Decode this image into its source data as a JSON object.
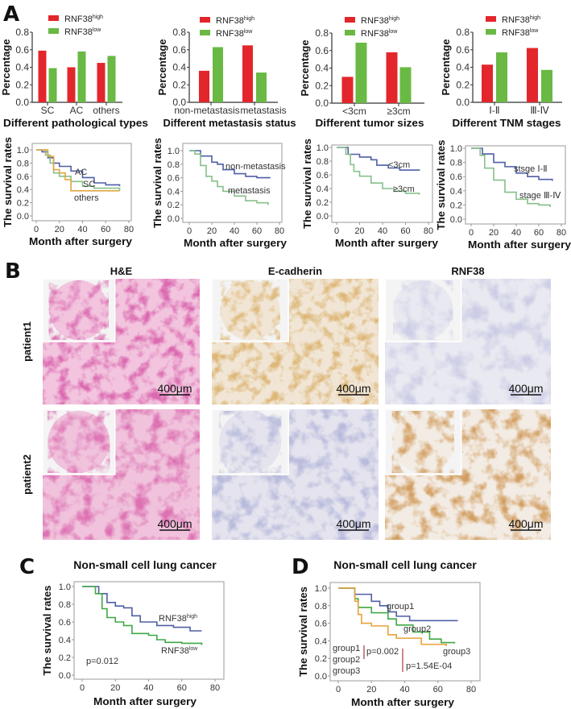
{
  "panel_labels": [
    "A",
    "B",
    "C",
    "D"
  ],
  "histology": {
    "columns": [
      "H&E",
      "E-cadherin",
      "RNF38"
    ],
    "rows": [
      "patient1",
      "patient2"
    ],
    "scale_bar": "400μm"
  },
  "chart_data": [
    {
      "type": "bar",
      "xlabel": "Different pathological types",
      "ylabel": "Percentage",
      "ylim": [
        0,
        0.8
      ],
      "yticks": [
        "0.0",
        "0.2",
        "0.4",
        "0.6",
        "0.8"
      ],
      "categories": [
        "SC",
        "AC",
        "others"
      ],
      "series": [
        {
          "name": "RNF38",
          "name_sup": "high",
          "color": "#e3262b",
          "values": [
            0.59,
            0.4,
            0.45
          ]
        },
        {
          "name": "RNF38",
          "name_sup": "low",
          "color": "#69b944",
          "values": [
            0.39,
            0.58,
            0.53
          ]
        }
      ]
    },
    {
      "type": "bar",
      "xlabel": "Different metastasis status",
      "ylabel": "Percentage",
      "ylim": [
        0,
        0.8
      ],
      "yticks": [
        "0.0",
        "0.2",
        "0.4",
        "0.6",
        "0.8"
      ],
      "categories": [
        "non-metastasis",
        "metastasis"
      ],
      "series": [
        {
          "name": "RNF38",
          "name_sup": "high",
          "color": "#e3262b",
          "values": [
            0.36,
            0.65
          ]
        },
        {
          "name": "RNF38",
          "name_sup": "low",
          "color": "#69b944",
          "values": [
            0.63,
            0.34
          ]
        }
      ]
    },
    {
      "type": "bar",
      "xlabel": "Different tumor sizes",
      "ylabel": "Percentage",
      "ylim": [
        0,
        0.8
      ],
      "yticks": [
        "0.0",
        "0.2",
        "0.4",
        "0.6",
        "0.8"
      ],
      "categories": [
        "<3cm",
        "≥3cm"
      ],
      "series": [
        {
          "name": "RNF38",
          "name_sup": "high",
          "color": "#e3262b",
          "values": [
            0.3,
            0.58
          ]
        },
        {
          "name": "RNF38",
          "name_sup": "low",
          "color": "#69b944",
          "values": [
            0.69,
            0.41
          ]
        }
      ]
    },
    {
      "type": "bar",
      "xlabel": "Different TNM stages",
      "ylabel": "Percentage",
      "ylim": [
        0,
        0.8
      ],
      "yticks": [
        "0.0",
        "0.2",
        "0.4",
        "0.6",
        "0.8"
      ],
      "categories": [
        "Ⅰ-Ⅱ",
        "Ⅲ-Ⅳ"
      ],
      "series": [
        {
          "name": "RNF38",
          "name_sup": "high",
          "color": "#e3262b",
          "values": [
            0.43,
            0.62
          ]
        },
        {
          "name": "RNF38",
          "name_sup": "low",
          "color": "#69b944",
          "values": [
            0.57,
            0.37
          ]
        }
      ]
    },
    {
      "type": "line",
      "step": true,
      "xlabel": "Month after surgery",
      "ylabel": "The survival rates",
      "xlim": [
        0,
        80
      ],
      "ylim": [
        0,
        1
      ],
      "xticks": [
        "0",
        "20",
        "40",
        "60",
        "80"
      ],
      "yticks": [
        "0.0",
        "0.2",
        "0.4",
        "0.6",
        "0.8",
        "1.0"
      ],
      "series": [
        {
          "name": "AC",
          "color": "#4f5fa6",
          "points": [
            [
              0,
              1
            ],
            [
              5,
              0.97
            ],
            [
              10,
              0.88
            ],
            [
              15,
              0.8
            ],
            [
              20,
              0.75
            ],
            [
              30,
              0.68
            ],
            [
              40,
              0.58
            ],
            [
              50,
              0.5
            ],
            [
              60,
              0.47
            ],
            [
              72,
              0.45
            ]
          ]
        },
        {
          "name": "SC",
          "color": "#86c08a",
          "points": [
            [
              0,
              1
            ],
            [
              8,
              0.92
            ],
            [
              12,
              0.8
            ],
            [
              15,
              0.65
            ],
            [
              20,
              0.6
            ],
            [
              30,
              0.52
            ],
            [
              40,
              0.45
            ],
            [
              50,
              0.42
            ],
            [
              72,
              0.38
            ]
          ]
        },
        {
          "name": "others",
          "color": "#e0a640",
          "points": [
            [
              0,
              1
            ],
            [
              8,
              1
            ],
            [
              10,
              0.9
            ],
            [
              15,
              0.7
            ],
            [
              20,
              0.65
            ],
            [
              25,
              0.55
            ],
            [
              30,
              0.38
            ],
            [
              72,
              0.38
            ]
          ]
        }
      ]
    },
    {
      "type": "line",
      "step": true,
      "xlabel": "Month after surgery",
      "ylabel": "The survival rates",
      "xlim": [
        0,
        80
      ],
      "ylim": [
        0,
        1
      ],
      "xticks": [
        "0",
        "20",
        "40",
        "60",
        "80"
      ],
      "yticks": [
        "0.0",
        "0.2",
        "0.4",
        "0.6",
        "0.8",
        "1.0"
      ],
      "series": [
        {
          "name": "non-metastasis",
          "color": "#4f5fa6",
          "points": [
            [
              0,
              1
            ],
            [
              10,
              0.92
            ],
            [
              20,
              0.83
            ],
            [
              25,
              0.8
            ],
            [
              30,
              0.72
            ],
            [
              40,
              0.66
            ],
            [
              50,
              0.62
            ],
            [
              60,
              0.6
            ],
            [
              72,
              0.6
            ]
          ]
        },
        {
          "name": "metastasis",
          "color": "#86c08a",
          "points": [
            [
              0,
              1
            ],
            [
              5,
              0.95
            ],
            [
              10,
              0.78
            ],
            [
              15,
              0.62
            ],
            [
              20,
              0.55
            ],
            [
              25,
              0.47
            ],
            [
              30,
              0.4
            ],
            [
              40,
              0.33
            ],
            [
              50,
              0.26
            ],
            [
              60,
              0.23
            ],
            [
              70,
              0.2
            ]
          ]
        }
      ]
    },
    {
      "type": "line",
      "step": true,
      "xlabel": "Month after surgery",
      "ylabel": "The survival rates",
      "xlim": [
        0,
        80
      ],
      "ylim": [
        0,
        1
      ],
      "xticks": [
        "0",
        "20",
        "40",
        "60",
        "80"
      ],
      "yticks": [
        "0.0",
        "0.2",
        "0.4",
        "0.6",
        "0.8",
        "1.0"
      ],
      "series": [
        {
          "name": "<3cm",
          "color": "#4f5fa6",
          "points": [
            [
              0,
              1
            ],
            [
              10,
              0.9
            ],
            [
              20,
              0.86
            ],
            [
              30,
              0.82
            ],
            [
              35,
              0.74
            ],
            [
              45,
              0.7
            ],
            [
              55,
              0.67
            ],
            [
              72,
              0.66
            ]
          ]
        },
        {
          "name": "≥3cm",
          "color": "#86c08a",
          "points": [
            [
              0,
              1
            ],
            [
              8,
              0.9
            ],
            [
              12,
              0.75
            ],
            [
              15,
              0.65
            ],
            [
              20,
              0.58
            ],
            [
              30,
              0.48
            ],
            [
              40,
              0.4
            ],
            [
              50,
              0.36
            ],
            [
              60,
              0.33
            ],
            [
              72,
              0.31
            ]
          ]
        }
      ]
    },
    {
      "type": "line",
      "step": true,
      "xlabel": "Month after surgery",
      "ylabel": "The survival rates",
      "xlim": [
        0,
        80
      ],
      "ylim": [
        0,
        1
      ],
      "xticks": [
        "0",
        "20",
        "40",
        "60",
        "80"
      ],
      "yticks": [
        "0.0",
        "0.2",
        "0.4",
        "0.6",
        "0.8",
        "1.0"
      ],
      "series": [
        {
          "name": "stsge Ⅰ-Ⅱ",
          "color": "#4f5fa6",
          "points": [
            [
              0,
              1
            ],
            [
              10,
              0.92
            ],
            [
              20,
              0.8
            ],
            [
              30,
              0.74
            ],
            [
              40,
              0.65
            ],
            [
              50,
              0.6
            ],
            [
              60,
              0.56
            ],
            [
              72,
              0.54
            ]
          ]
        },
        {
          "name": "stage Ⅲ-Ⅳ",
          "color": "#86c08a",
          "points": [
            [
              0,
              1
            ],
            [
              8,
              0.9
            ],
            [
              12,
              0.72
            ],
            [
              20,
              0.55
            ],
            [
              30,
              0.38
            ],
            [
              40,
              0.28
            ],
            [
              50,
              0.22
            ],
            [
              60,
              0.2
            ],
            [
              70,
              0.17
            ]
          ]
        }
      ]
    },
    {
      "type": "line",
      "step": true,
      "title": "Non-small cell lung cancer",
      "xlabel": "Month after surgery",
      "ylabel": "The survival rates",
      "xlim": [
        0,
        80
      ],
      "ylim": [
        0,
        1
      ],
      "xticks": [
        "0",
        "20",
        "40",
        "60",
        "80"
      ],
      "yticks": [
        "0.0",
        "0.2",
        "0.4",
        "0.6",
        "0.8",
        "1.0"
      ],
      "series": [
        {
          "name": "RNF38",
          "name_sup": "high",
          "color": "#4f5fa6",
          "points": [
            [
              0,
              1
            ],
            [
              10,
              0.92
            ],
            [
              15,
              0.82
            ],
            [
              20,
              0.78
            ],
            [
              25,
              0.76
            ],
            [
              30,
              0.67
            ],
            [
              35,
              0.6
            ],
            [
              45,
              0.56
            ],
            [
              55,
              0.54
            ],
            [
              65,
              0.5
            ],
            [
              72,
              0.5
            ]
          ]
        },
        {
          "name": "RNF38",
          "name_sup": "low",
          "color": "#3fa844",
          "points": [
            [
              0,
              1
            ],
            [
              8,
              0.92
            ],
            [
              12,
              0.75
            ],
            [
              15,
              0.65
            ],
            [
              20,
              0.6
            ],
            [
              25,
              0.56
            ],
            [
              30,
              0.47
            ],
            [
              40,
              0.45
            ],
            [
              45,
              0.4
            ],
            [
              50,
              0.37
            ],
            [
              60,
              0.36
            ],
            [
              72,
              0.34
            ]
          ]
        }
      ],
      "annotations": {
        "p_values": [
          "p=0.012"
        ]
      }
    },
    {
      "type": "line",
      "step": true,
      "title": "Non-small cell lung cancer",
      "xlabel": "Month after surgery",
      "ylabel": "The survival rates",
      "xlim": [
        0,
        80
      ],
      "ylim": [
        0,
        1
      ],
      "xticks": [
        "0",
        "20",
        "40",
        "60",
        "80"
      ],
      "yticks": [
        "0.0",
        "0.2",
        "0.4",
        "0.6",
        "0.8",
        "1.0"
      ],
      "series": [
        {
          "name": "group1",
          "color": "#4f5fa6",
          "points": [
            [
              0,
              1
            ],
            [
              5,
              1
            ],
            [
              10,
              0.93
            ],
            [
              20,
              0.85
            ],
            [
              25,
              0.8
            ],
            [
              30,
              0.73
            ],
            [
              35,
              0.68
            ],
            [
              43,
              0.63
            ],
            [
              72,
              0.63
            ]
          ]
        },
        {
          "name": "group2",
          "color": "#3fa844",
          "points": [
            [
              0,
              1
            ],
            [
              10,
              0.88
            ],
            [
              12,
              0.78
            ],
            [
              20,
              0.72
            ],
            [
              30,
              0.65
            ],
            [
              35,
              0.58
            ],
            [
              45,
              0.5
            ],
            [
              55,
              0.42
            ],
            [
              62,
              0.38
            ],
            [
              70,
              0.37
            ]
          ]
        },
        {
          "name": "group3",
          "color": "#e8a23a",
          "points": [
            [
              0,
              1
            ],
            [
              10,
              0.85
            ],
            [
              12,
              0.7
            ],
            [
              14,
              0.6
            ],
            [
              20,
              0.57
            ],
            [
              30,
              0.47
            ],
            [
              35,
              0.43
            ],
            [
              50,
              0.36
            ],
            [
              65,
              0.34
            ]
          ]
        }
      ],
      "annotations": {
        "legend": [
          "group1",
          "group2",
          "group3"
        ],
        "p_values": [
          "p=0.002",
          "p=1.54E-04"
        ],
        "p_line_color": "#b0363a"
      }
    }
  ]
}
